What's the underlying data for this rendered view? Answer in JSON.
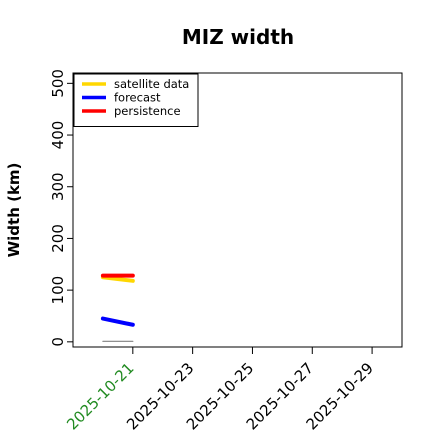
{
  "chart_data": {
    "type": "line",
    "title": "MIZ width",
    "xlabel": "",
    "ylabel": "Width (km)",
    "xlim": [
      "2025-10-19",
      "2025-10-30"
    ],
    "ylim": [
      -10,
      520
    ],
    "y_ticks": [
      0,
      100,
      200,
      300,
      400,
      500
    ],
    "x_ticks": [
      {
        "date": "2025-10-21",
        "label": "2025-10-21",
        "color": "#228b22"
      },
      {
        "date": "2025-10-23",
        "label": "2025-10-23",
        "color": "#000000"
      },
      {
        "date": "2025-10-25",
        "label": "2025-10-25",
        "color": "#000000"
      },
      {
        "date": "2025-10-27",
        "label": "2025-10-27",
        "color": "#000000"
      },
      {
        "date": "2025-10-29",
        "label": "2025-10-29",
        "color": "#000000"
      }
    ],
    "legend_position": "top-left",
    "series": [
      {
        "name": "satellite data",
        "color": "#ffd700",
        "x": [
          "2025-10-20",
          "2025-10-21"
        ],
        "values": [
          125,
          118
        ]
      },
      {
        "name": "forecast",
        "color": "#0000ff",
        "x": [
          "2025-10-20",
          "2025-10-21"
        ],
        "values": [
          45,
          33
        ]
      },
      {
        "name": "persistence",
        "color": "#ff0000",
        "x": [
          "2025-10-20",
          "2025-10-21"
        ],
        "values": [
          128,
          128
        ]
      },
      {
        "name": "",
        "color": "#808080",
        "x": [
          "2025-10-20",
          "2025-10-21"
        ],
        "values": [
          1,
          1
        ]
      }
    ]
  }
}
